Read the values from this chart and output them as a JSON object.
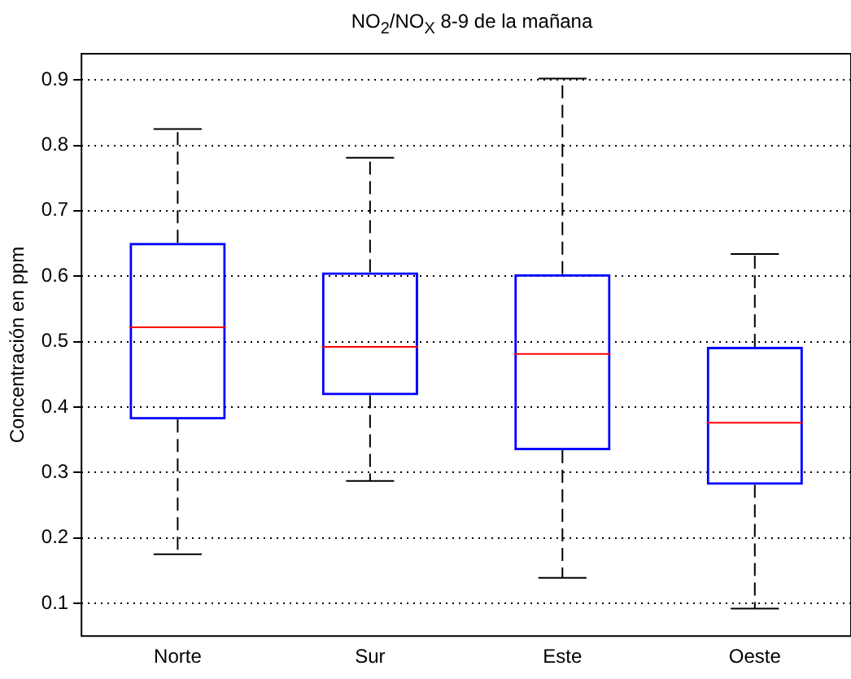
{
  "chart_data": {
    "type": "box",
    "title": "NO$_{2}$/NO$_{X}$ 8-9 de la mañana",
    "ylabel": "Concentración en ppm",
    "categories": [
      "Norte",
      "Sur",
      "Este",
      "Oeste"
    ],
    "boxes": [
      {
        "low": 0.175,
        "q1": 0.381,
        "median": 0.522,
        "q3": 0.651,
        "high": 0.825
      },
      {
        "low": 0.287,
        "q1": 0.418,
        "median": 0.492,
        "q3": 0.606,
        "high": 0.781
      },
      {
        "low": 0.139,
        "q1": 0.334,
        "median": 0.481,
        "q3": 0.603,
        "high": 0.902
      },
      {
        "low": 0.092,
        "q1": 0.281,
        "median": 0.376,
        "q3": 0.492,
        "high": 0.634
      }
    ],
    "color": "#0000ff",
    "ylim": [
      0.05,
      0.94
    ],
    "yticks": [
      0.1,
      0.2,
      0.3,
      0.4,
      0.5,
      0.6,
      0.7,
      0.8,
      0.9
    ],
    "grid": "y",
    "legend": false
  }
}
